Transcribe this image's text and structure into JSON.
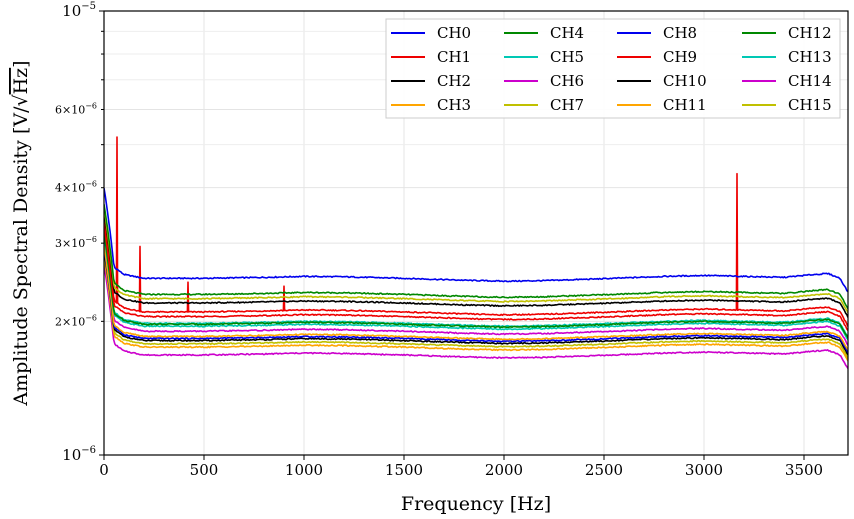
{
  "chart_data": {
    "type": "line",
    "title": "",
    "xlabel": "Frequency [Hz]",
    "ylabel": "Amplitude Spectral Density [V/√Hz]",
    "ylabel_parts": {
      "main": "Amplitude Spectral Density [V/",
      "sqrt": "Hz",
      "close": "]"
    },
    "xscale": "linear",
    "yscale": "log",
    "xlim": [
      0,
      3720
    ],
    "ylim": [
      1e-06,
      1e-05
    ],
    "grid": true,
    "legend_position": "top-right",
    "legend_columns": 4,
    "x_ticks": [
      {
        "value": 0,
        "label": "0"
      },
      {
        "value": 500,
        "label": "500"
      },
      {
        "value": 1000,
        "label": "1000"
      },
      {
        "value": 1500,
        "label": "1500"
      },
      {
        "value": 2000,
        "label": "2000"
      },
      {
        "value": 2500,
        "label": "2500"
      },
      {
        "value": 3000,
        "label": "3000"
      },
      {
        "value": 3500,
        "label": "3500"
      }
    ],
    "y_major_ticks": [
      {
        "value": 1e-06,
        "mantissa": "10",
        "exponent": "−6"
      },
      {
        "value": 1e-05,
        "mantissa": "10",
        "exponent": "−5"
      }
    ],
    "y_minor_ticks": [
      {
        "value": 2e-06,
        "mantissa": "2×10",
        "exponent": "−6"
      },
      {
        "value": 3e-06,
        "mantissa": "3×10",
        "exponent": "−6"
      },
      {
        "value": 4e-06,
        "mantissa": "4×10",
        "exponent": "−6"
      },
      {
        "value": 6e-06,
        "mantissa": "6×10",
        "exponent": "−6"
      }
    ],
    "y_minor_unlabeled": [
      5e-06,
      7e-06,
      8e-06,
      9e-06
    ],
    "shape_profile": {
      "frequency": [
        0,
        50,
        100,
        200,
        500,
        800,
        1000,
        1200,
        1500,
        1800,
        2000,
        2200,
        2500,
        2800,
        3000,
        3200,
        3400,
        3550,
        3620,
        3680,
        3720
      ],
      "relative": [
        1.6,
        1.06,
        1.02,
        1.0,
        1.0,
        1.005,
        1.01,
        1.008,
        1.0,
        0.99,
        0.985,
        0.988,
        0.998,
        1.01,
        1.015,
        1.01,
        1.005,
        1.02,
        1.025,
        1.0,
        0.93
      ]
    },
    "series": [
      {
        "name": "CH0",
        "color": "#0000ee",
        "level": 2.5e-06
      },
      {
        "name": "CH1",
        "color": "#ee0000",
        "level": 2.1e-06,
        "peaks": [
          [
            65,
            5.2e-06
          ],
          [
            180,
            2.95e-06
          ],
          [
            420,
            2.45e-06
          ],
          [
            900,
            2.4e-06
          ],
          [
            3165,
            4.3e-06
          ]
        ]
      },
      {
        "name": "CH2",
        "color": "#000000",
        "level": 2.2e-06
      },
      {
        "name": "CH3",
        "color": "#ffa500",
        "level": 1.85e-06
      },
      {
        "name": "CH4",
        "color": "#008800",
        "level": 2.3e-06
      },
      {
        "name": "CH5",
        "color": "#00c8b4",
        "level": 1.95e-06
      },
      {
        "name": "CH6",
        "color": "#cc00cc",
        "level": 1.68e-06
      },
      {
        "name": "CH7",
        "color": "#c0c000",
        "level": 2.25e-06
      },
      {
        "name": "CH8",
        "color": "#0000ee",
        "level": 1.83e-06
      },
      {
        "name": "CH9",
        "color": "#ee0000",
        "level": 2.05e-06
      },
      {
        "name": "CH10",
        "color": "#000000",
        "level": 1.81e-06
      },
      {
        "name": "CH11",
        "color": "#ffa500",
        "level": 1.75e-06
      },
      {
        "name": "CH12",
        "color": "#008800",
        "level": 1.97e-06
      },
      {
        "name": "CH13",
        "color": "#00c8b4",
        "level": 1.98e-06
      },
      {
        "name": "CH14",
        "color": "#cc00cc",
        "level": 1.9e-06
      },
      {
        "name": "CH15",
        "color": "#c0c000",
        "level": 1.78e-06
      }
    ]
  }
}
